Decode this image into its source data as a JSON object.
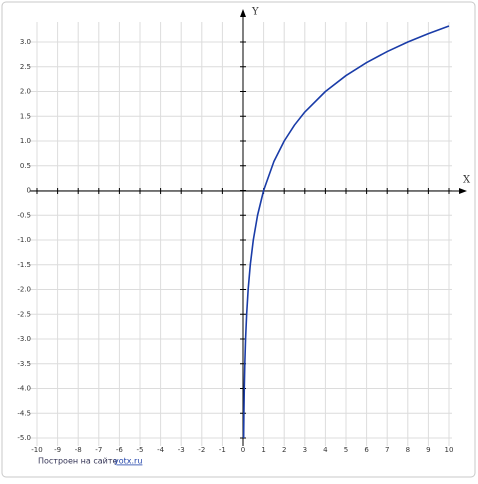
{
  "chart_data": {
    "type": "line",
    "x_axis_label": "X",
    "y_axis_label": "Y",
    "x": [
      0.03125,
      0.0442,
      0.0625,
      0.0884,
      0.125,
      0.177,
      0.25,
      0.354,
      0.5,
      0.707,
      1,
      1.5,
      2,
      2.5,
      3,
      4,
      5,
      6,
      7,
      8,
      9,
      10
    ],
    "series": [
      {
        "color": "#1a3ca8",
        "values": [
          -5,
          -4.5,
          -4,
          -3.5,
          -3,
          -2.5,
          -2,
          -1.5,
          -1,
          -0.5,
          0,
          0.585,
          1,
          1.322,
          1.585,
          2,
          2.322,
          2.585,
          2.807,
          3,
          3.17,
          3.322
        ]
      }
    ],
    "xlim": [
      -10,
      10
    ],
    "ylim": [
      -5,
      3
    ],
    "xticks": [
      -10,
      -9,
      -8,
      -7,
      -6,
      -5,
      -4,
      -3,
      -2,
      -1,
      0,
      1,
      2,
      3,
      4,
      5,
      6,
      7,
      8,
      9,
      10
    ],
    "yticks": [
      {
        "value": 3,
        "label": "3.0"
      },
      2.5,
      {
        "value": 2,
        "label": "2.0"
      },
      1.5,
      {
        "value": 1,
        "label": "1.0"
      },
      0.5,
      0,
      -0.5,
      {
        "value": -1,
        "label": "-1.0"
      },
      -1.5,
      {
        "value": -2,
        "label": "-2.0"
      },
      -2.5,
      {
        "value": -3,
        "label": "-3.0"
      },
      -3.5,
      {
        "value": -4,
        "label": "-4.0"
      },
      -4.5,
      {
        "value": -5,
        "label": "-5.0"
      }
    ],
    "grid": true,
    "footer_text": "Построен на сайте",
    "footer_link": "yotx.ru"
  }
}
